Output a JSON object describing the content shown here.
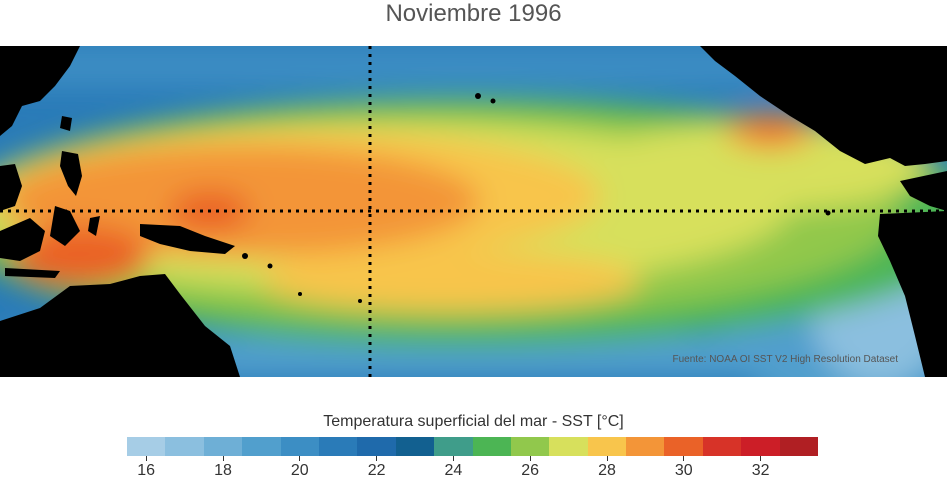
{
  "title": "Noviembre 1996",
  "source": "Fuente: NOAA OI SST V2 High Resolution Dataset",
  "legend": {
    "title": "Temperatura superficial del mar - SST  [°C]",
    "colors": [
      "#a6cde6",
      "#8bbfdf",
      "#6eafd6",
      "#519fcd",
      "#3c8ec4",
      "#2a7bb8",
      "#1f6aab",
      "#126090",
      "#3f9d8a",
      "#4cb554",
      "#91c84c",
      "#d7e05c",
      "#f8c54c",
      "#f39538",
      "#ea6228",
      "#d73328",
      "#cc1e27",
      "#b01f23"
    ],
    "tick_labels": [
      "16",
      "18",
      "20",
      "22",
      "24",
      "26",
      "28",
      "30",
      "32"
    ]
  }
}
